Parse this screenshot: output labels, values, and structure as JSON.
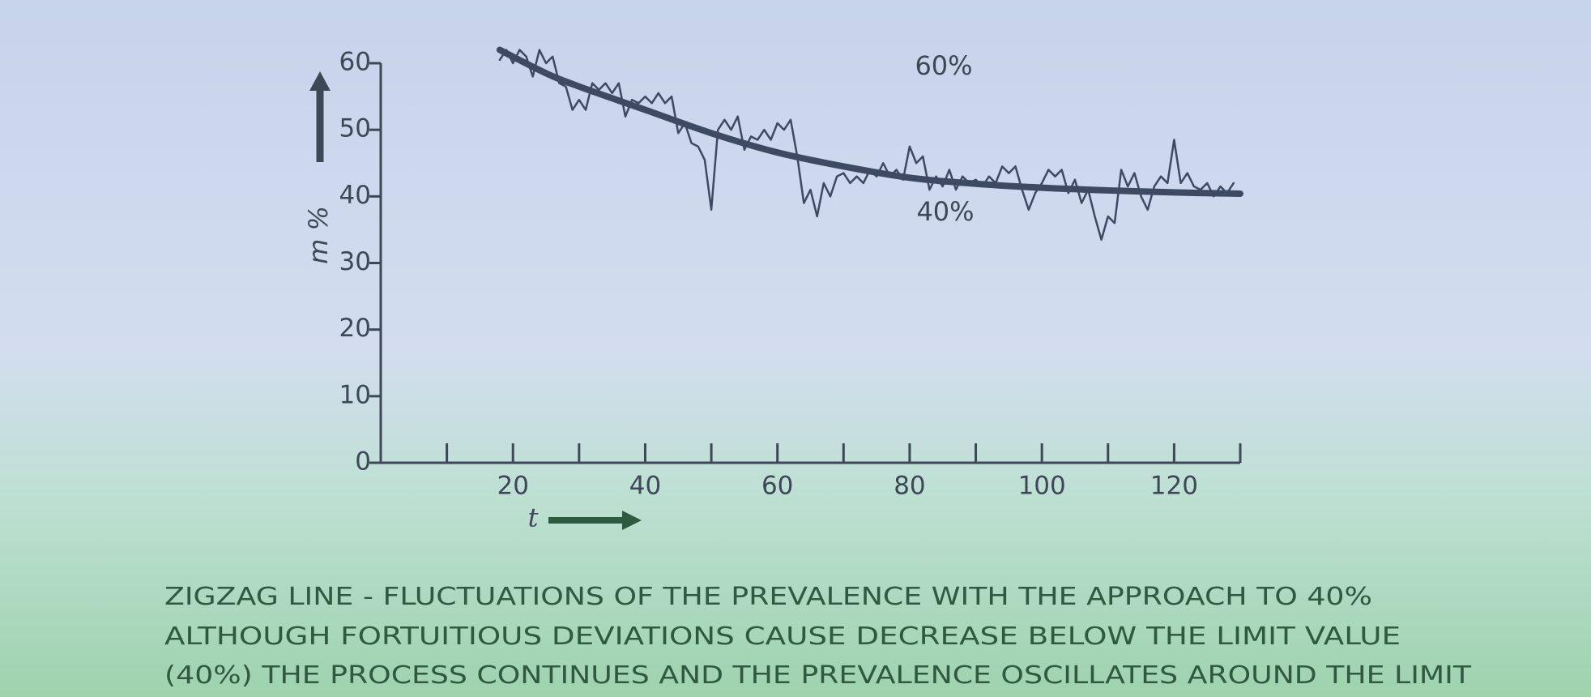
{
  "chart_data": {
    "type": "line",
    "y_label": "m %",
    "x_label": "t",
    "annotations": [
      "60%",
      "40%"
    ],
    "caption": [
      "ZIGZAG LINE - FLUCTUATIONS OF THE PREVALENCE WITH THE APPROACH TO 40%",
      "ALTHOUGH FORTUITIOUS DEVIATIONS CAUSE  DECREASE  BELOW THE LIMIT VALUE",
      "(40%) THE PROCESS CONTINUES AND THE PREVALENCE OSCILLATES AROUND THE LIMIT"
    ],
    "xlim": [
      0,
      130
    ],
    "ylim": [
      0,
      60
    ],
    "xticks": [
      20,
      40,
      60,
      80,
      100,
      120
    ],
    "minor_xticks": [
      10,
      30,
      50,
      70,
      90,
      110,
      130
    ],
    "yticks": [
      0,
      10,
      20,
      30,
      40,
      50,
      60
    ],
    "series": [
      {
        "color": "#3e4a62",
        "x": [
          18,
          19,
          20,
          21,
          22,
          23,
          24,
          25,
          26,
          27,
          28,
          29,
          30,
          31,
          32,
          33,
          34,
          35,
          36,
          37,
          38,
          39,
          40,
          41,
          42,
          43,
          44,
          45,
          46,
          47,
          48,
          49,
          50,
          51,
          52,
          53,
          54,
          55,
          56,
          57,
          58,
          59,
          60,
          61,
          62,
          63,
          64,
          65,
          66,
          67,
          68,
          69,
          70,
          71,
          72,
          73,
          74,
          75,
          76,
          77,
          78,
          79,
          80,
          81,
          82,
          83,
          84,
          85,
          86,
          87,
          88,
          89,
          90,
          91,
          92,
          93,
          94,
          95,
          96,
          97,
          98,
          99,
          100,
          101,
          102,
          103,
          104,
          105,
          106,
          107,
          108,
          109,
          110,
          111,
          112,
          113,
          114,
          115,
          116,
          117,
          118,
          119,
          120,
          121,
          122,
          123,
          124,
          125,
          126,
          127,
          128,
          129
        ],
        "values": [
          60.5,
          62,
          60,
          62,
          61,
          58,
          62,
          60,
          61,
          57,
          56.5,
          53,
          54.5,
          53,
          57,
          56,
          57,
          55.5,
          57,
          52,
          54.5,
          54,
          55,
          54,
          55.5,
          54,
          55,
          49.5,
          51,
          48,
          47.5,
          45.5,
          38,
          50,
          51.5,
          50,
          52,
          47,
          49,
          48.5,
          50,
          48.5,
          51,
          50,
          51.5,
          46,
          39,
          41,
          37,
          42,
          40,
          43,
          43.5,
          42,
          43,
          42,
          44,
          43,
          45,
          43,
          44,
          42.5,
          47.5,
          45,
          46,
          41,
          43,
          41.5,
          44,
          41,
          43,
          42,
          42.5,
          41.5,
          43,
          42,
          44.5,
          43.5,
          44.5,
          41,
          38,
          40.5,
          42,
          44,
          43,
          44,
          40.5,
          42.5,
          39,
          41,
          37,
          33.5,
          37,
          36,
          44,
          41.5,
          43.5,
          40,
          38,
          41.5,
          43,
          42,
          48.5,
          42,
          43.5,
          41.5,
          41,
          42,
          40,
          41.5,
          40.5,
          42
        ]
      },
      {
        "color": "#3e4a62",
        "x": [
          18,
          25,
          30,
          40,
          50,
          60,
          70,
          80,
          90,
          100,
          110,
          120,
          130
        ],
        "values": [
          62,
          58.5,
          56.5,
          53,
          49.5,
          46.6,
          44.5,
          42.8,
          41.9,
          41.3,
          40.9,
          40.6,
          40.4
        ]
      }
    ]
  }
}
